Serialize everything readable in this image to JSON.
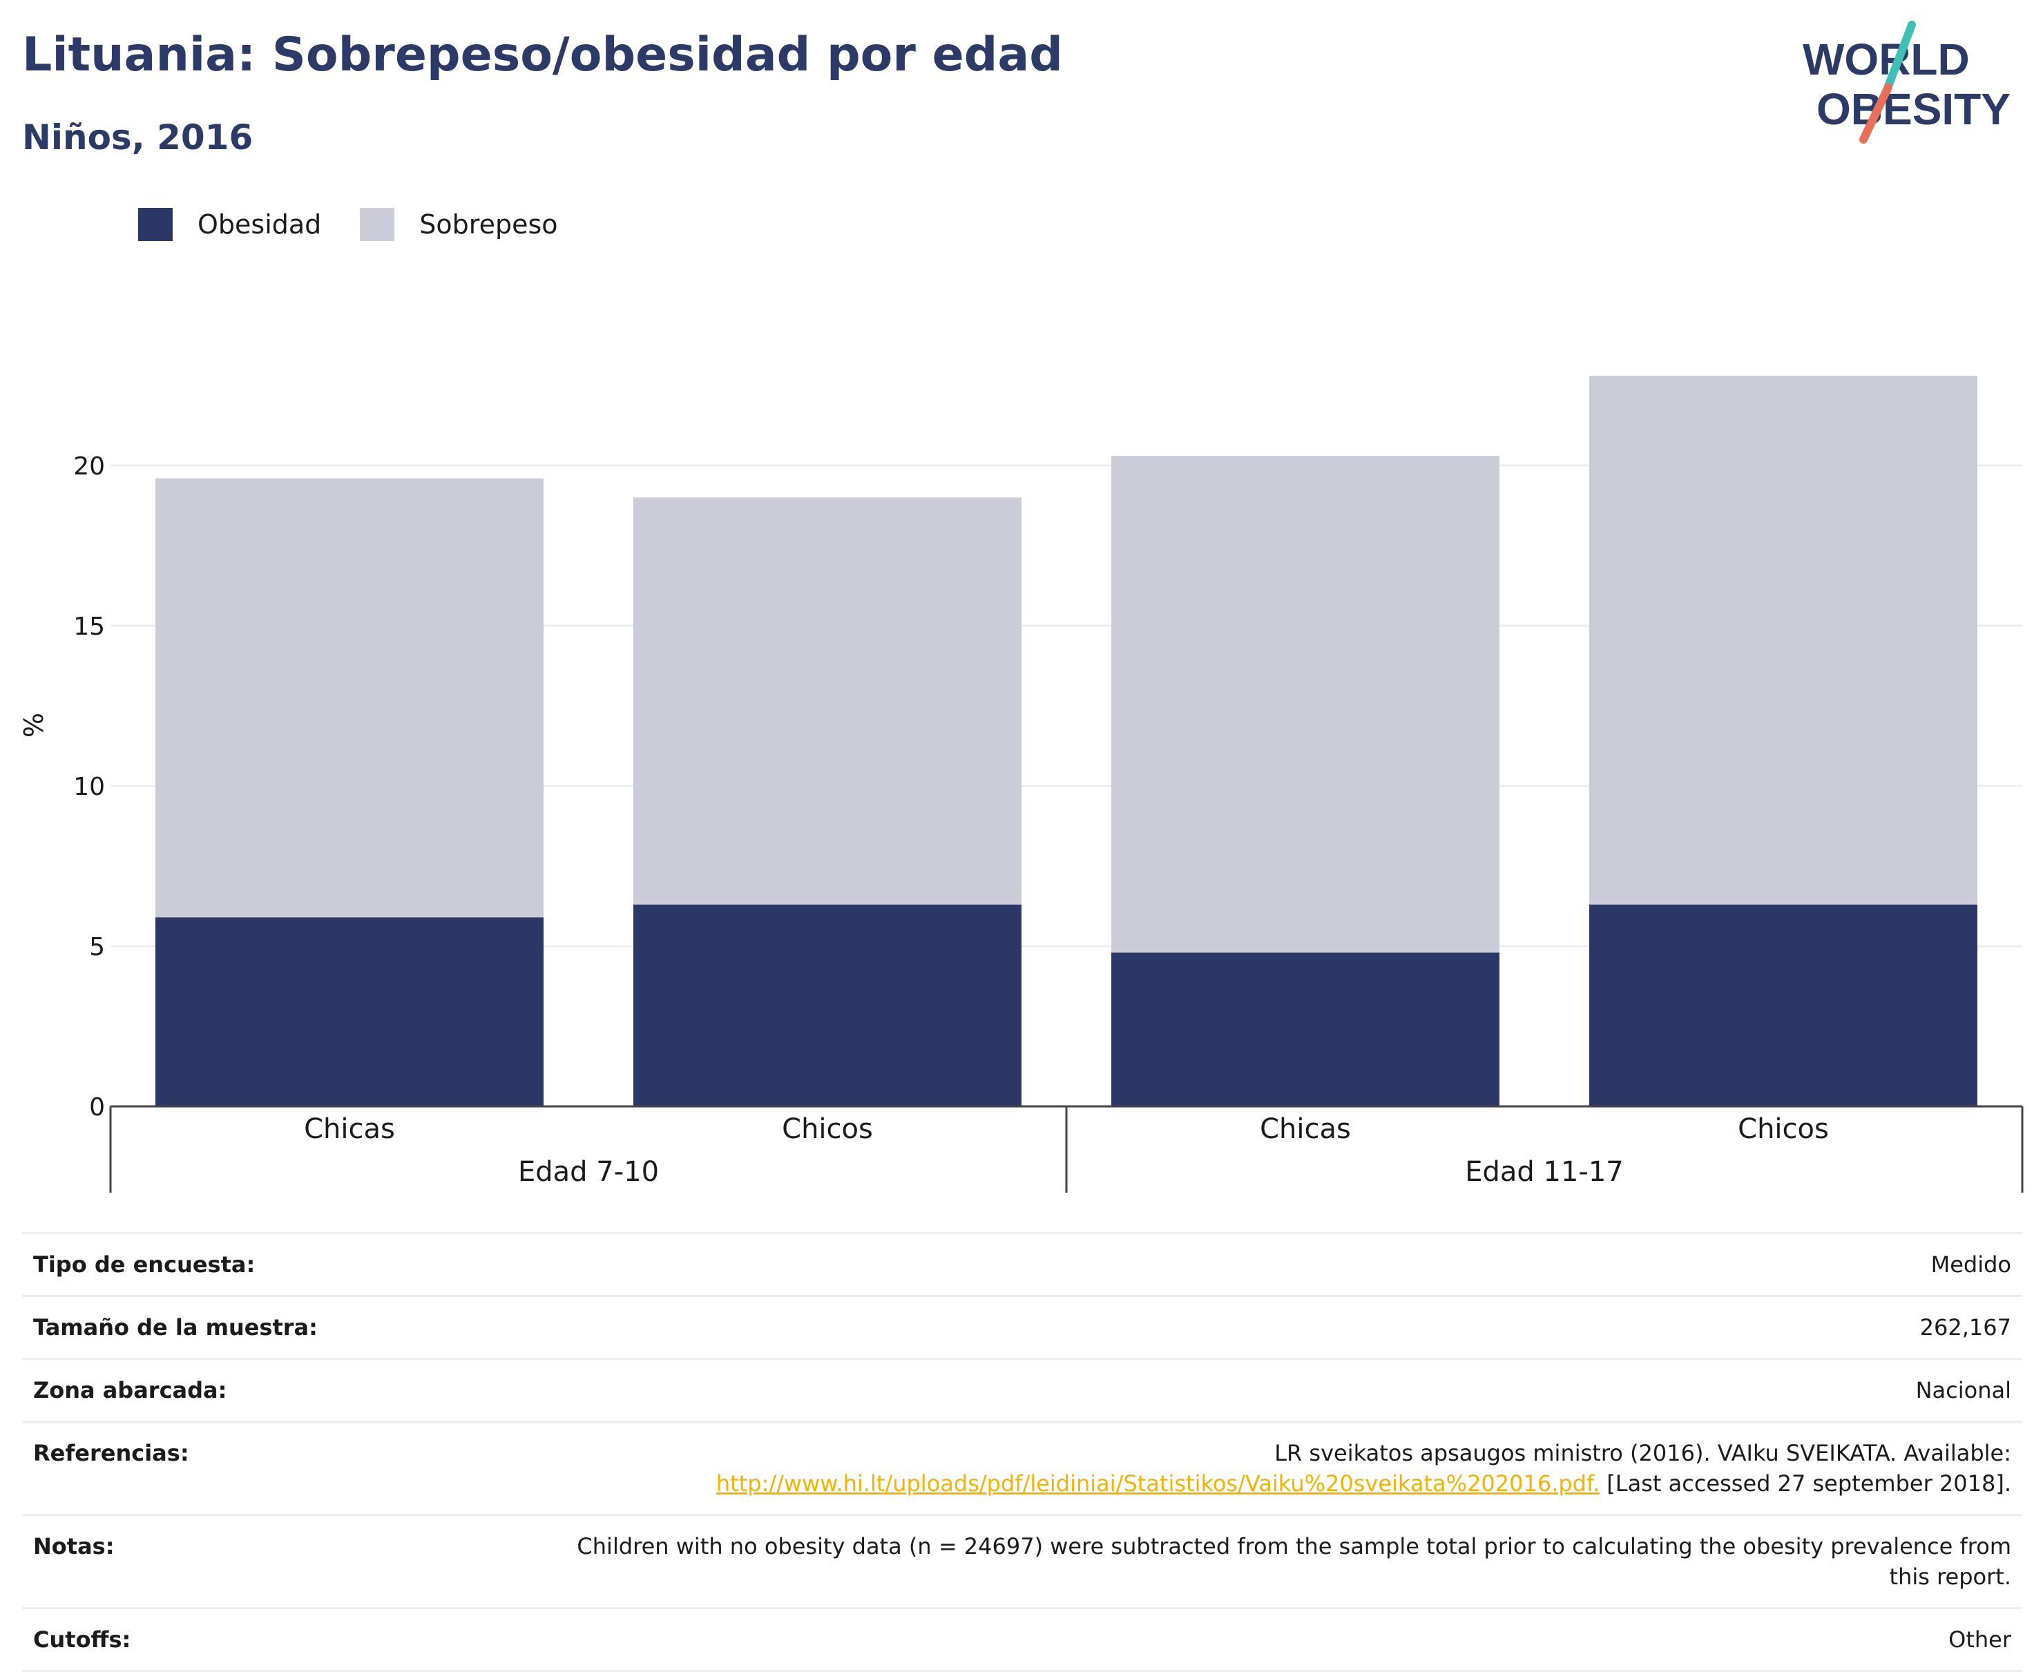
{
  "header": {
    "title": "Lituania: Sobrepeso/obesidad por edad",
    "subtitle": "Niños, 2016"
  },
  "logo": {
    "line1": "WORLD",
    "line2": "OBESITY",
    "colors": {
      "text": "#2b3a67",
      "slash_top": "#3fbfb6",
      "slash_bottom": "#e8705a"
    }
  },
  "colors": {
    "obesity": "#2b3766",
    "overweight": "#cbccd8",
    "grid": "#ececf2",
    "axis": "#444444"
  },
  "chart_data": {
    "type": "bar",
    "stacked": true,
    "ylabel": "%",
    "ylim": [
      0,
      23
    ],
    "yticks": [
      0,
      5,
      10,
      15,
      20
    ],
    "grid": true,
    "legend_position": "top-left",
    "categories": [
      "Chicas",
      "Chicos",
      "Chicas",
      "Chicos"
    ],
    "groups": [
      {
        "label": "Edad 7-10",
        "categories": [
          0,
          1
        ]
      },
      {
        "label": "Edad 11-17",
        "categories": [
          2,
          3
        ]
      }
    ],
    "series": [
      {
        "name": "Obesidad",
        "color": "#2b3766",
        "values": [
          5.9,
          6.3,
          4.8,
          6.3
        ]
      },
      {
        "name": "Sobrepeso",
        "color": "#cbccd8",
        "values": [
          13.7,
          12.7,
          15.5,
          16.5
        ]
      }
    ]
  },
  "info": {
    "survey_type": {
      "label": "Tipo de encuesta:",
      "value": "Medido"
    },
    "sample_size": {
      "label": "Tamaño de la muestra:",
      "value": "262,167"
    },
    "area": {
      "label": "Zona abarcada:",
      "value": "Nacional"
    },
    "references": {
      "label": "Referencias:",
      "text": "LR sveikatos apsaugos ministro (2016). VAIku SVEIKATA. Available:",
      "link": "http://www.hi.lt/uploads/pdf/leidiniai/Statistikos/Vaiku%20sveikata%202016.pdf.",
      "suffix": "[Last accessed 27 september 2018]."
    },
    "notes": {
      "label": "Notas:",
      "value": "Children with no obesity data (n = 24697) were subtracted from the sample total prior to calculating the obesity prevalence from this report."
    },
    "cutoffs": {
      "label": "Cutoffs:",
      "value": "Other"
    }
  }
}
